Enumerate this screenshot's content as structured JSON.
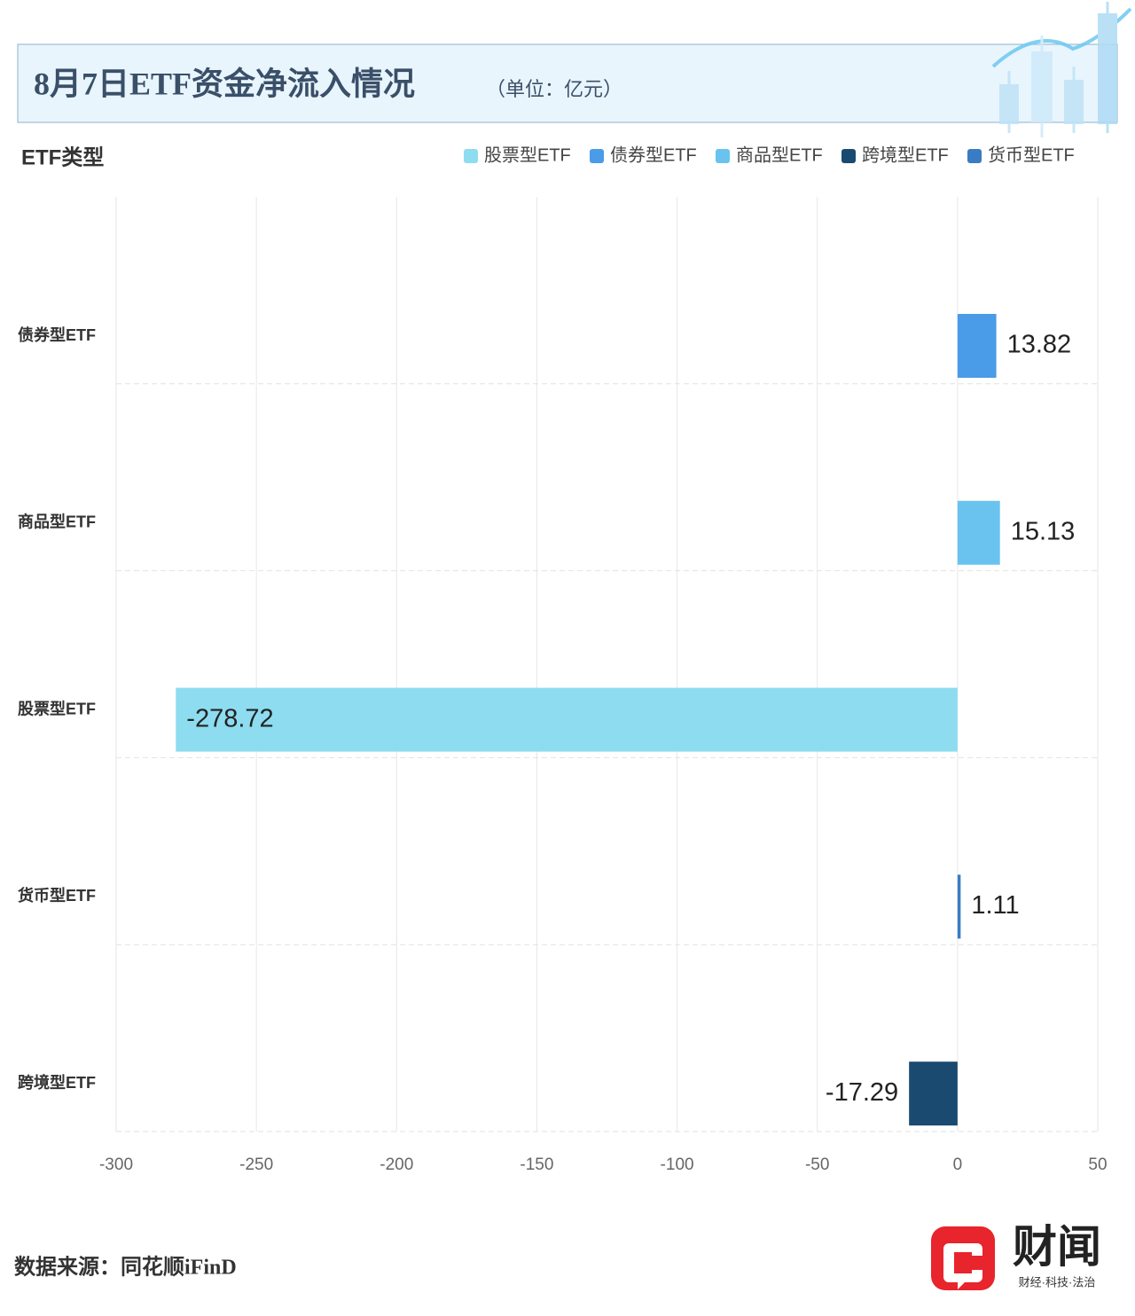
{
  "chart_data": {
    "type": "bar",
    "orientation": "horizontal",
    "title": "8月7日ETF资金净流入情况",
    "subtitle": "（单位：亿元）",
    "y_label": "ETF类型",
    "categories": [
      "债券型ETF",
      "商品型ETF",
      "股票型ETF",
      "货币型ETF",
      "跨境型ETF"
    ],
    "series": [
      {
        "name": "股票型ETF",
        "color": "#8ddcf0",
        "values": [
          null,
          null,
          -278.72,
          null,
          null
        ]
      },
      {
        "name": "债券型ETF",
        "color": "#4a9be8",
        "values": [
          13.82,
          null,
          null,
          null,
          null
        ]
      },
      {
        "name": "商品型ETF",
        "color": "#6ac3ef",
        "values": [
          null,
          15.13,
          null,
          null,
          null
        ]
      },
      {
        "name": "跨境型ETF",
        "color": "#1a4a70",
        "values": [
          null,
          null,
          null,
          null,
          -17.29
        ]
      },
      {
        "name": "货币型ETF",
        "color": "#3a7cc4",
        "values": [
          null,
          null,
          null,
          1.11,
          null
        ]
      }
    ],
    "xlim": [
      -300,
      50
    ],
    "xticks": [
      -300,
      -250,
      -200,
      -150,
      -100,
      -50,
      0,
      50
    ],
    "grid": true,
    "source": "数据来源：同花顺iFinD",
    "logo": "财闻",
    "logo_tagline": "财经·科技·法治"
  }
}
